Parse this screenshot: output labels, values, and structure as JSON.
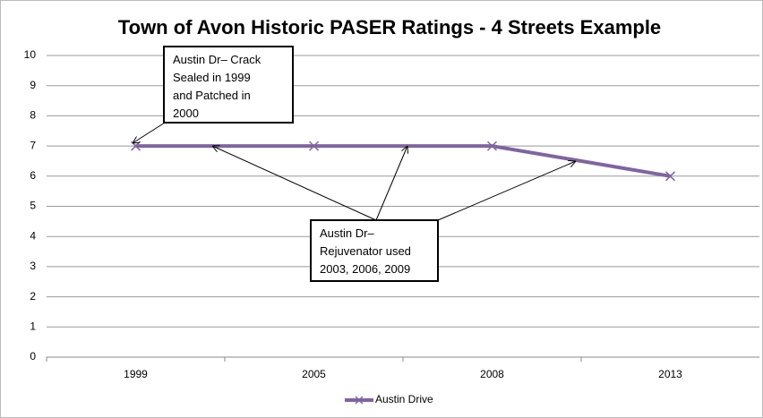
{
  "chart_data": {
    "type": "line",
    "title": "Town of Avon Historic PASER Ratings - 4 Streets Example",
    "categories": [
      "1999",
      "2005",
      "2008",
      "2013"
    ],
    "series": [
      {
        "name": "Austin Drive",
        "color": "#8064a2",
        "values": [
          7,
          7,
          7,
          6
        ]
      }
    ],
    "ylim": [
      0,
      10
    ],
    "yticks": [
      0,
      1,
      2,
      3,
      4,
      5,
      6,
      7,
      8,
      9,
      10
    ],
    "grid": true,
    "legend": "bottom",
    "annotations": [
      {
        "lines": [
          "Austin Dr– Crack",
          "Sealed in 1999",
          "and Patched in",
          "2000"
        ]
      },
      {
        "lines": [
          "Austin Dr–",
          "Rejuvenator used",
          "2003, 2006, 2009"
        ]
      }
    ]
  }
}
